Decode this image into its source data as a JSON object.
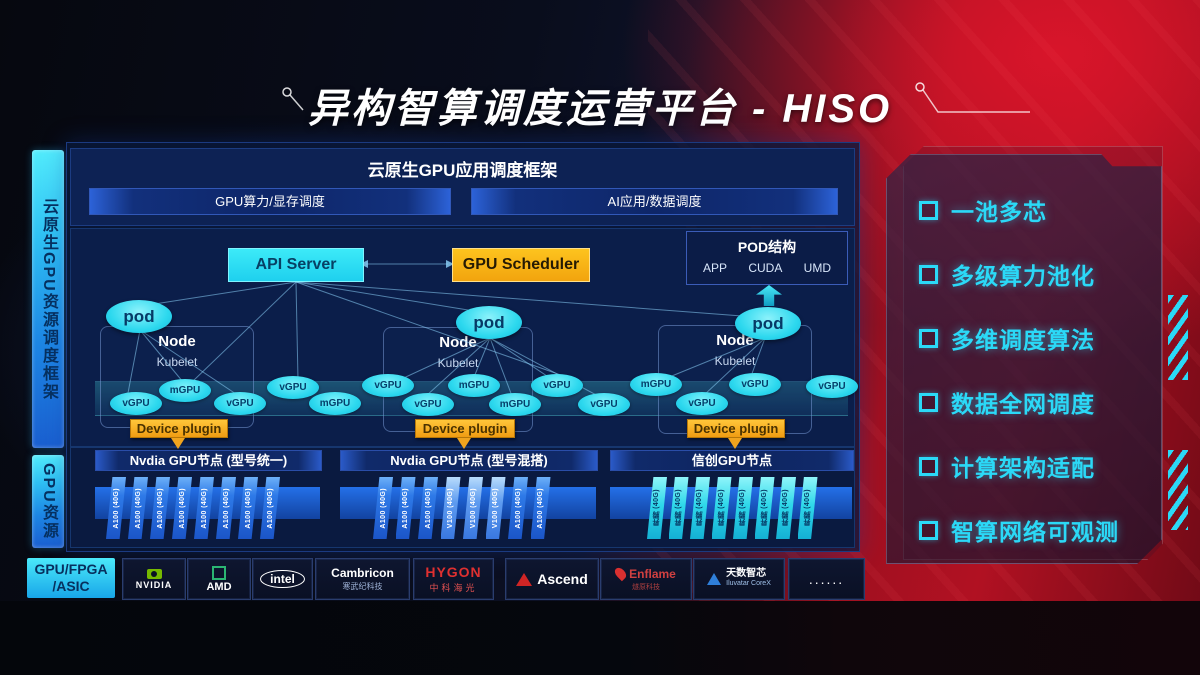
{
  "title": "异构智算调度运营平台 - HISO",
  "left_rails": {
    "rail1": "云原生GPU资源调度框架",
    "rail2": "GPU资源"
  },
  "scheduler_frame": {
    "title": "云原生GPU应用调度框架",
    "bar_left": "GPU算力/显存调度",
    "bar_right": "AI应用/数据调度"
  },
  "core": {
    "api_server": "API Server",
    "gpu_scheduler": "GPU Scheduler",
    "pod_struct": {
      "title": "POD结构",
      "layers": [
        "APP",
        "CUDA",
        "UMD"
      ]
    }
  },
  "nodes": [
    {
      "pod": "pod",
      "name": "Node",
      "agent": "Kubelet",
      "device_plugin": "Device plugin"
    },
    {
      "pod": "pod",
      "name": "Node",
      "agent": "Kubelet",
      "device_plugin": "Device plugin"
    },
    {
      "pod": "pod",
      "name": "Node",
      "agent": "Kubelet",
      "device_plugin": "Device plugin"
    }
  ],
  "gpu_ellipses": [
    "vGPU",
    "mGPU",
    "vGPU",
    "vGPU",
    "mGPU",
    "vGPU",
    "vGPU",
    "mGPU",
    "mGPU",
    "vGPU",
    "vGPU",
    "mGPU",
    "vGPU",
    "vGPU",
    "vGPU"
  ],
  "gpu_sections": [
    {
      "header": "Nvdia GPU节点 (型号统一)",
      "cards": [
        {
          "label": "A100 (40G)",
          "variant": "blue"
        },
        {
          "label": "A100 (40G)",
          "variant": "blue"
        },
        {
          "label": "A100 (40G)",
          "variant": "blue"
        },
        {
          "label": "A100 (40G)",
          "variant": "blue"
        },
        {
          "label": "A100 (40G)",
          "variant": "blue"
        },
        {
          "label": "A100 (40G)",
          "variant": "blue"
        },
        {
          "label": "A100 (40G)",
          "variant": "blue"
        },
        {
          "label": "A100 (40G)",
          "variant": "blue"
        }
      ]
    },
    {
      "header": "Nvdia GPU节点 (型号混搭)",
      "cards": [
        {
          "label": "A100 (40G)",
          "variant": "blue"
        },
        {
          "label": "A100 (40G)",
          "variant": "blue"
        },
        {
          "label": "A100 (40G)",
          "variant": "blue"
        },
        {
          "label": "V100 (40G)",
          "variant": "light"
        },
        {
          "label": "V100 (40G)",
          "variant": "light"
        },
        {
          "label": "V100 (40G)",
          "variant": "light"
        },
        {
          "label": "A100 (40G)",
          "variant": "blue"
        },
        {
          "label": "A100 (40G)",
          "variant": "blue"
        }
      ]
    },
    {
      "header": "信创GPU节点",
      "cards": [
        {
          "label": "昇腾 (40G)",
          "variant": "cyan"
        },
        {
          "label": "昇腾 (40G)",
          "variant": "cyan"
        },
        {
          "label": "昇腾 (40G)",
          "variant": "cyan"
        },
        {
          "label": "昇腾 (40G)",
          "variant": "cyan"
        },
        {
          "label": "昇腾 (40G)",
          "variant": "cyan"
        },
        {
          "label": "昇腾 (40G)",
          "variant": "cyan"
        },
        {
          "label": "昇腾 (40G)",
          "variant": "cyan"
        },
        {
          "label": "昇腾 (40G)",
          "variant": "cyan"
        }
      ]
    }
  ],
  "vendor_row": {
    "label1": "GPU/FPGA",
    "label2": "/ASIC"
  },
  "vendors": [
    {
      "id": "nvidia",
      "line1": "NVIDIA"
    },
    {
      "id": "amd",
      "line1": "AMD"
    },
    {
      "id": "intel",
      "line1": "intel"
    },
    {
      "id": "cambricon",
      "line1": "Cambricon",
      "line2": "寒武纪科技"
    },
    {
      "id": "hygon",
      "line1": "HYGON",
      "line2": "中科海光"
    },
    {
      "id": "ascend",
      "line1": "Ascend"
    },
    {
      "id": "enflame",
      "line1": "Enflame",
      "line2": "燧原科技"
    },
    {
      "id": "iluvatar",
      "line1": "天数智芯",
      "line2": "Iluvatar CoreX"
    },
    {
      "id": "dots",
      "line1": "......"
    }
  ],
  "features": [
    "一池多芯",
    "多级算力池化",
    "多维调度算法",
    "数据全网调度",
    "计算架构适配",
    "智算网络可观测"
  ],
  "colors": {
    "accent_cyan": "#2ee1f7",
    "accent_yellow": "#f6b61b",
    "accent_red": "#b80f1f",
    "panel_navy": "#0a1c44",
    "card_blue": "#2e7ae8",
    "card_cyan": "#2fd8ea"
  }
}
